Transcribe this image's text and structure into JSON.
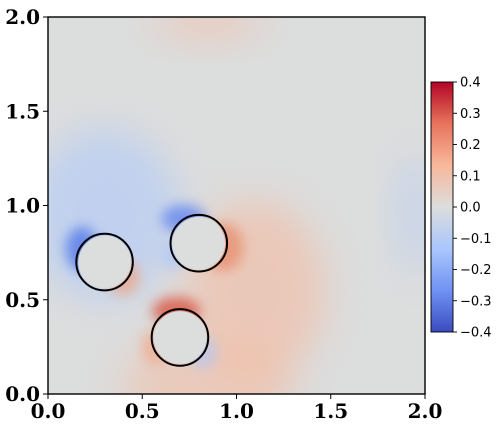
{
  "chart_data": {
    "type": "heatmap",
    "title": "",
    "xlabel": "",
    "ylabel": "",
    "xlim": [
      0.0,
      2.0
    ],
    "ylim": [
      0.0,
      2.0
    ],
    "x_ticks": [
      "0.0",
      "0.5",
      "1.0",
      "1.5",
      "2.0"
    ],
    "y_ticks": [
      "0.0",
      "0.5",
      "1.0",
      "1.5",
      "2.0"
    ],
    "x_tick_values": [
      0.0,
      0.5,
      1.0,
      1.5,
      2.0
    ],
    "y_tick_values": [
      0.0,
      0.5,
      1.0,
      1.5,
      2.0
    ],
    "grid": false,
    "colormap": "coolwarm",
    "colorbar": {
      "range": [
        -0.4,
        0.4
      ],
      "ticks": [
        "−0.4",
        "−0.3",
        "−0.2",
        "−0.1",
        "0.0",
        "0.1",
        "0.2",
        "0.3",
        "0.4"
      ],
      "tick_values": [
        -0.4,
        -0.3,
        -0.2,
        -0.1,
        0.0,
        0.1,
        0.2,
        0.3,
        0.4
      ],
      "colors": [
        "#3b4cc0",
        "#7092f3",
        "#aac7fd",
        "#dcdddd",
        "#f7b89c",
        "#e7745b",
        "#b40426"
      ]
    },
    "circles": [
      {
        "cx": 0.3,
        "cy": 0.7,
        "r": 0.15
      },
      {
        "cx": 0.8,
        "cy": 0.8,
        "r": 0.15
      },
      {
        "cx": 0.7,
        "cy": 0.3,
        "r": 0.15
      }
    ]
  }
}
